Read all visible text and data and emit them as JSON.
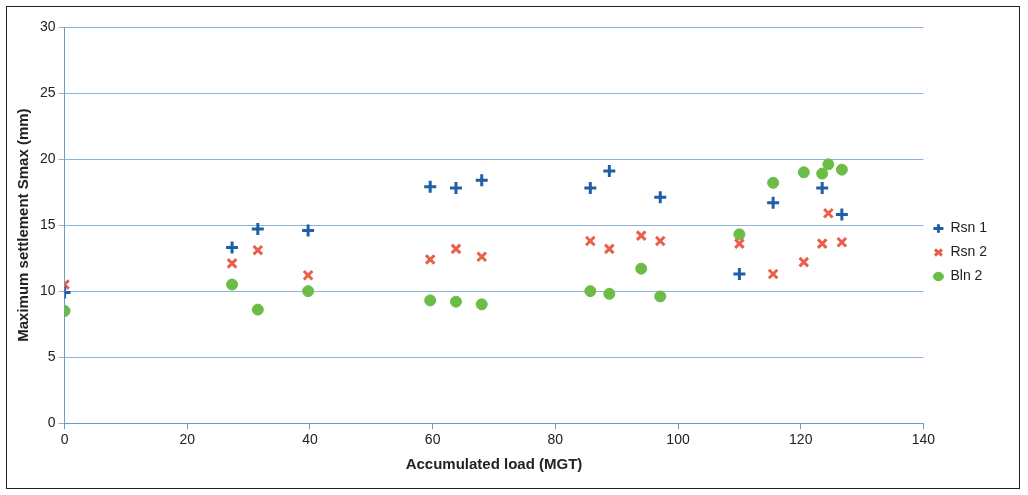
{
  "chart_data": {
    "type": "scatter",
    "xlabel": "Accumulated load (MGT)",
    "ylabel": "Maximum settlement Smax (mm)",
    "xlim": [
      0,
      140
    ],
    "xticks": [
      0,
      20,
      40,
      60,
      80,
      100,
      120,
      140
    ],
    "ylim": [
      0,
      30
    ],
    "yticks": [
      0,
      5,
      10,
      15,
      20,
      25,
      30
    ],
    "grid": "y",
    "legend": "right",
    "series": [
      {
        "name": "Rsn 1",
        "color": "#1f5fa8",
        "marker": "cross",
        "x": [
          0,
          27.3,
          31.5,
          39.7,
          59.6,
          63.8,
          68,
          85.7,
          88.8,
          97.1,
          110,
          115.5,
          123.5,
          126.7
        ],
        "values": [
          9.9,
          13.3,
          14.7,
          14.6,
          17.9,
          17.8,
          18.4,
          17.8,
          19.1,
          17.1,
          11.3,
          16.7,
          17.8,
          15.8
        ]
      },
      {
        "name": "Rsn 2",
        "color": "#e8604c",
        "marker": "cross",
        "x": [
          0,
          27.3,
          31.5,
          39.7,
          59.6,
          63.8,
          68,
          85.7,
          88.8,
          94,
          97.1,
          110,
          115.5,
          120.5,
          123.5,
          124.5,
          126.7
        ],
        "values": [
          10.5,
          12.1,
          13.1,
          11.2,
          12.4,
          13.2,
          12.6,
          13.8,
          13.2,
          14.2,
          13.8,
          13.6,
          11.3,
          12.2,
          13.6,
          15.9,
          13.7
        ]
      },
      {
        "name": "Bln 2",
        "color": "#6cbd45",
        "marker": "circle",
        "x": [
          0,
          27.3,
          31.5,
          39.7,
          59.6,
          63.8,
          68,
          85.7,
          88.8,
          94,
          97.1,
          110,
          115.5,
          120.5,
          123.5,
          124.5,
          126.7
        ],
        "values": [
          8.5,
          10.5,
          8.6,
          10.0,
          9.3,
          9.2,
          9.0,
          10.0,
          9.8,
          11.7,
          9.6,
          14.3,
          18.2,
          19.0,
          18.9,
          19.6,
          19.2
        ]
      }
    ]
  }
}
